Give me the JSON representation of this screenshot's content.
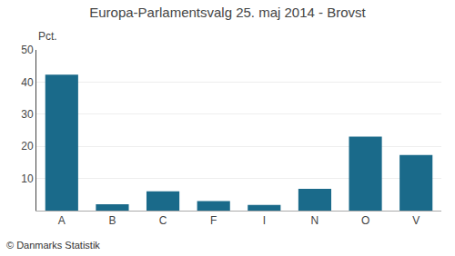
{
  "chart_data": {
    "type": "bar",
    "title": "Europa-Parlamentsvalg 25. maj 2014 - Brovst",
    "categories": [
      "A",
      "B",
      "C",
      "F",
      "I",
      "N",
      "O",
      "V"
    ],
    "values": [
      42.3,
      2.0,
      6.0,
      3.0,
      1.8,
      6.8,
      23.0,
      17.3
    ],
    "color": "#1a6a8a",
    "ylabel": "Pct.",
    "annotations": [
      "© Danmarks Statistik"
    ],
    "ylim": [
      0,
      50
    ],
    "yticks": [
      10,
      20,
      30,
      40,
      50
    ],
    "grid": true
  }
}
